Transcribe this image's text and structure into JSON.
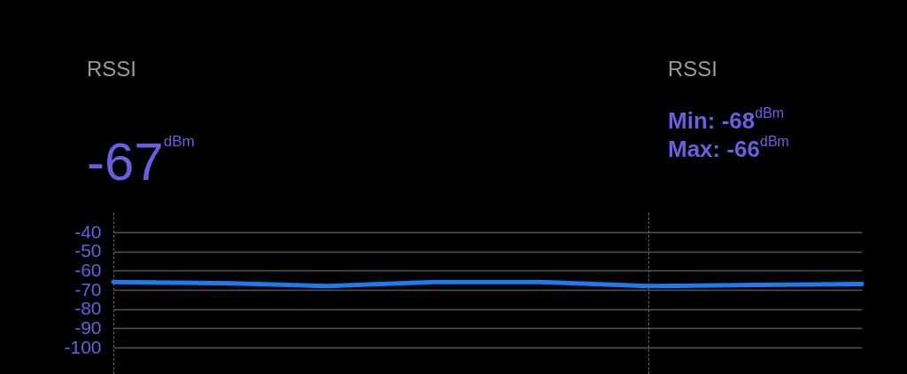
{
  "chart_data": {
    "type": "line",
    "title": "RSSI",
    "annotations": [
      "RSSI",
      "-67$^{dBm}$",
      "Min: -68$^{dBm}$",
      "Max: -66$^{dBm}$"
    ],
    "categories": [
      null,
      null,
      null,
      null,
      null,
      null,
      null,
      null
    ],
    "series": [
      {
        "color": "#1a7cf0",
        "values": [
          -66,
          -66.5,
          -68,
          -66,
          -66,
          -68,
          -67.5,
          -67
        ]
      }
    ],
    "ylim": [
      -100,
      -40
    ],
    "yticks": [
      -40,
      -50,
      -60,
      -70,
      -80,
      -90,
      -100
    ],
    "grid": "y",
    "tick_labels": "y",
    "line_style": "solid"
  }
}
